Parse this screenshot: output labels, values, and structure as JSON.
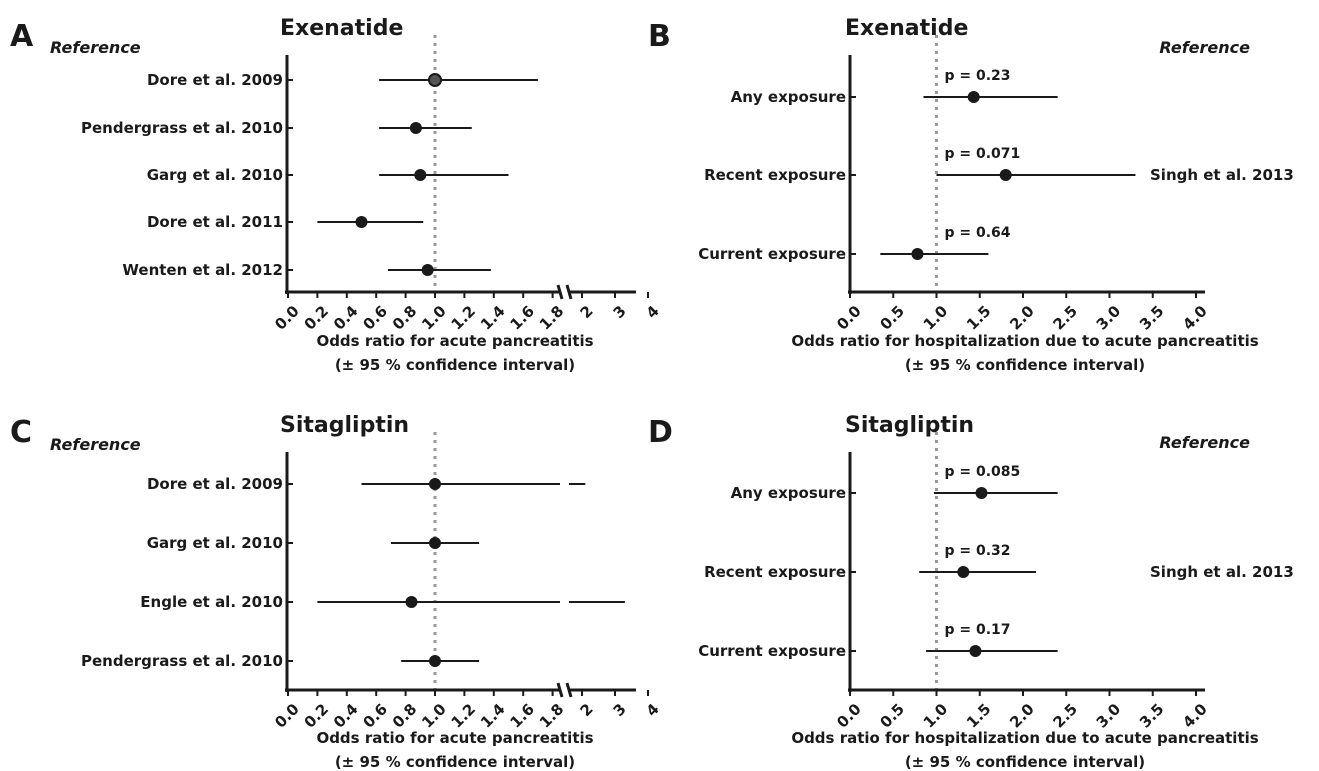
{
  "chart_data": [
    {
      "panel": "A",
      "type": "forest",
      "title": "Exenatide",
      "reference_header": "Reference",
      "xlabel": [
        "Odds ratio for acute pancreatitis",
        "(± 95 % confidence interval)"
      ],
      "xticks": [
        "0.0",
        "0.2",
        "0.4",
        "0.6",
        "0.8",
        "1.0",
        "1.2",
        "1.4",
        "1.6",
        "1.8",
        "2",
        "3",
        "4"
      ],
      "axis_break": true,
      "categories": [
        "Dore et al. 2009",
        "Pendergrass et al. 2010",
        "Garg et al. 2010",
        "Dore et al. 2011",
        "Wenten et al. 2012"
      ],
      "or": [
        1.0,
        0.87,
        0.9,
        0.5,
        0.95
      ],
      "ci_low": [
        0.62,
        0.62,
        0.62,
        0.2,
        0.68
      ],
      "ci_high": [
        1.7,
        1.25,
        1.5,
        0.92,
        1.38
      ],
      "open_marker": [
        true,
        false,
        false,
        false,
        false
      ]
    },
    {
      "panel": "B",
      "type": "forest",
      "title": "Exenatide",
      "reference_header": "Reference",
      "reference": "Singh et al. 2013",
      "xlabel": [
        "Odds ratio for hospitalization due to acute pancreatitis",
        "(± 95 % confidence interval)"
      ],
      "xticks": [
        "0.0",
        "0.5",
        "1.0",
        "1.5",
        "2.0",
        "2.5",
        "3.0",
        "3.5",
        "4.0"
      ],
      "categories": [
        "Any exposure",
        "Recent exposure",
        "Current exposure"
      ],
      "or": [
        1.43,
        1.8,
        0.78
      ],
      "ci_low": [
        0.85,
        1.0,
        0.35
      ],
      "ci_high": [
        2.4,
        3.3,
        1.6
      ],
      "p_values": [
        "p = 0.23",
        "p = 0.071",
        "p = 0.64"
      ]
    },
    {
      "panel": "C",
      "type": "forest",
      "title": "Sitagliptin",
      "reference_header": "Reference",
      "xlabel": [
        "Odds ratio for acute pancreatitis",
        "(± 95 % confidence interval)"
      ],
      "xticks": [
        "0.0",
        "0.2",
        "0.4",
        "0.6",
        "0.8",
        "1.0",
        "1.2",
        "1.4",
        "1.6",
        "1.8",
        "2",
        "3",
        "4"
      ],
      "axis_break": true,
      "categories": [
        "Dore et al. 2009",
        "Garg et al. 2010",
        "Engle et al. 2010",
        "Pendergrass et al. 2010"
      ],
      "or": [
        1.0,
        1.0,
        0.84,
        1.0
      ],
      "ci_low": [
        0.5,
        0.7,
        0.2,
        0.77
      ],
      "ci_high": [
        2.1,
        1.3,
        3.3,
        1.3
      ]
    },
    {
      "panel": "D",
      "type": "forest",
      "title": "Sitagliptin",
      "reference_header": "Reference",
      "reference": "Singh et al. 2013",
      "xlabel": [
        "Odds ratio for hospitalization due to acute pancreatitis",
        "(± 95 % confidence interval)"
      ],
      "xticks": [
        "0.0",
        "0.5",
        "1.0",
        "1.5",
        "2.0",
        "2.5",
        "3.0",
        "3.5",
        "4.0"
      ],
      "categories": [
        "Any exposure",
        "Recent exposure",
        "Current exposure"
      ],
      "or": [
        1.52,
        1.31,
        1.45
      ],
      "ci_low": [
        0.97,
        0.8,
        0.88
      ],
      "ci_high": [
        2.4,
        2.15,
        2.4
      ],
      "p_values": [
        "p = 0.085",
        "p = 0.32",
        "p = 0.17"
      ]
    }
  ]
}
